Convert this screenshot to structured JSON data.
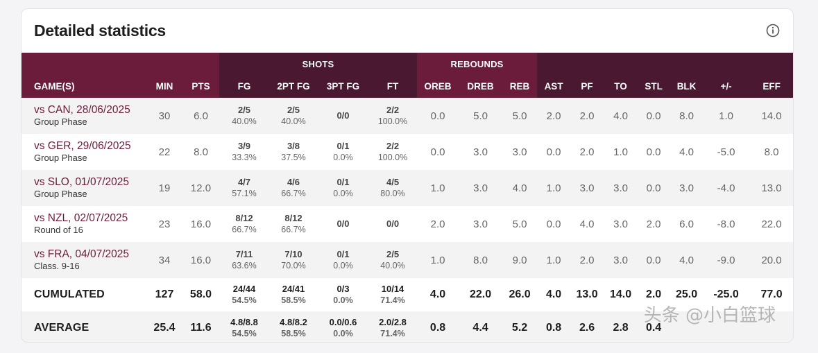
{
  "title": "Detailed statistics",
  "group_headers": {
    "shots": "SHOTS",
    "rebounds": "REBOUNDS"
  },
  "columns": [
    "GAME(S)",
    "MIN",
    "PTS",
    "FG",
    "2PT FG",
    "3PT FG",
    "FT",
    "OREB",
    "DREB",
    "REB",
    "AST",
    "PF",
    "TO",
    "STL",
    "BLK",
    "+/-",
    "EFF"
  ],
  "games": [
    {
      "opponent": "vs CAN, 28/06/2025",
      "phase": "Group Phase",
      "min": "30",
      "pts": "6.0",
      "fg": {
        "m": "2/5",
        "p": "40.0%"
      },
      "fg2": {
        "m": "2/5",
        "p": "40.0%"
      },
      "fg3": {
        "m": "0/0",
        "p": ""
      },
      "ft": {
        "m": "2/2",
        "p": "100.0%"
      },
      "oreb": "0.0",
      "dreb": "5.0",
      "reb": "5.0",
      "ast": "2.0",
      "pf": "2.0",
      "to": "4.0",
      "stl": "0.0",
      "blk": "8.0",
      "pm": "1.0",
      "eff": "14.0"
    },
    {
      "opponent": "vs GER, 29/06/2025",
      "phase": "Group Phase",
      "min": "22",
      "pts": "8.0",
      "fg": {
        "m": "3/9",
        "p": "33.3%"
      },
      "fg2": {
        "m": "3/8",
        "p": "37.5%"
      },
      "fg3": {
        "m": "0/1",
        "p": "0.0%"
      },
      "ft": {
        "m": "2/2",
        "p": "100.0%"
      },
      "oreb": "0.0",
      "dreb": "3.0",
      "reb": "3.0",
      "ast": "0.0",
      "pf": "2.0",
      "to": "1.0",
      "stl": "0.0",
      "blk": "4.0",
      "pm": "-5.0",
      "eff": "8.0"
    },
    {
      "opponent": "vs SLO, 01/07/2025",
      "phase": "Group Phase",
      "min": "19",
      "pts": "12.0",
      "fg": {
        "m": "4/7",
        "p": "57.1%"
      },
      "fg2": {
        "m": "4/6",
        "p": "66.7%"
      },
      "fg3": {
        "m": "0/1",
        "p": "0.0%"
      },
      "ft": {
        "m": "4/5",
        "p": "80.0%"
      },
      "oreb": "1.0",
      "dreb": "3.0",
      "reb": "4.0",
      "ast": "1.0",
      "pf": "3.0",
      "to": "3.0",
      "stl": "0.0",
      "blk": "3.0",
      "pm": "-4.0",
      "eff": "13.0"
    },
    {
      "opponent": "vs NZL, 02/07/2025",
      "phase": "Round of 16",
      "min": "23",
      "pts": "16.0",
      "fg": {
        "m": "8/12",
        "p": "66.7%"
      },
      "fg2": {
        "m": "8/12",
        "p": "66.7%"
      },
      "fg3": {
        "m": "0/0",
        "p": ""
      },
      "ft": {
        "m": "0/0",
        "p": ""
      },
      "oreb": "2.0",
      "dreb": "3.0",
      "reb": "5.0",
      "ast": "0.0",
      "pf": "4.0",
      "to": "3.0",
      "stl": "2.0",
      "blk": "6.0",
      "pm": "-8.0",
      "eff": "22.0"
    },
    {
      "opponent": "vs FRA, 04/07/2025",
      "phase": "Class. 9-16",
      "min": "34",
      "pts": "16.0",
      "fg": {
        "m": "7/11",
        "p": "63.6%"
      },
      "fg2": {
        "m": "7/10",
        "p": "70.0%"
      },
      "fg3": {
        "m": "0/1",
        "p": "0.0%"
      },
      "ft": {
        "m": "2/5",
        "p": "40.0%"
      },
      "oreb": "1.0",
      "dreb": "8.0",
      "reb": "9.0",
      "ast": "1.0",
      "pf": "2.0",
      "to": "3.0",
      "stl": "0.0",
      "blk": "4.0",
      "pm": "-9.0",
      "eff": "20.0"
    }
  ],
  "totals": [
    {
      "label": "CUMULATED",
      "min": "127",
      "pts": "58.0",
      "fg": {
        "m": "24/44",
        "p": "54.5%"
      },
      "fg2": {
        "m": "24/41",
        "p": "58.5%"
      },
      "fg3": {
        "m": "0/3",
        "p": "0.0%"
      },
      "ft": {
        "m": "10/14",
        "p": "71.4%"
      },
      "oreb": "4.0",
      "dreb": "22.0",
      "reb": "26.0",
      "ast": "4.0",
      "pf": "13.0",
      "to": "14.0",
      "stl": "2.0",
      "blk": "25.0",
      "pm": "-25.0",
      "eff": "77.0"
    },
    {
      "label": "AVERAGE",
      "min": "25.4",
      "pts": "11.6",
      "fg": {
        "m": "4.8/8.8",
        "p": "54.5%"
      },
      "fg2": {
        "m": "4.8/8.2",
        "p": "58.5%"
      },
      "fg3": {
        "m": "0.0/0.6",
        "p": "0.0%"
      },
      "ft": {
        "m": "2.0/2.8",
        "p": "71.4%"
      },
      "oreb": "0.8",
      "dreb": "4.4",
      "reb": "5.2",
      "ast": "0.8",
      "pf": "2.6",
      "to": "2.8",
      "stl": "0.4",
      "blk": "",
      "pm": "",
      "eff": ""
    }
  ],
  "watermark": "头条 @小白篮球",
  "colors": {
    "header_primary": "#6b1c3a",
    "header_dark": "#4a1830",
    "link": "#6b1c3a"
  },
  "icons": {
    "info": "info-circle-icon"
  }
}
